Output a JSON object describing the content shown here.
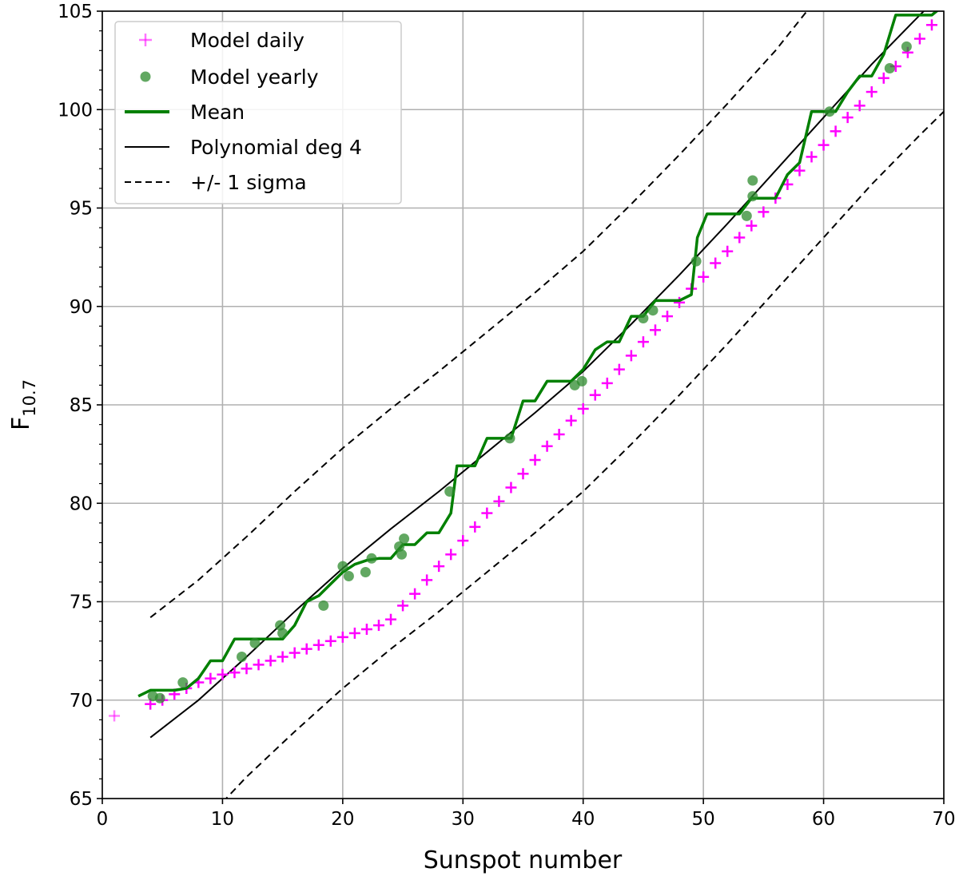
{
  "chart_data": {
    "type": "line",
    "xlabel": "Sunspot number",
    "ylabel": "F",
    "ylabel_sub": "10.7",
    "xlim": [
      0,
      70
    ],
    "ylim": [
      65,
      105
    ],
    "grid": true,
    "x_ticks": [
      "0",
      "10",
      "20",
      "30",
      "40",
      "50",
      "60",
      "70"
    ],
    "y_ticks": [
      "65",
      "70",
      "75",
      "80",
      "85",
      "90",
      "95",
      "100",
      "105"
    ],
    "legend_position": "top-left",
    "series": [
      {
        "name": "Model daily",
        "kind": "scatter-plus",
        "color": "#ff00ff",
        "points": [
          [
            1,
            69.2
          ],
          [
            4,
            69.8
          ],
          [
            5,
            70.0
          ],
          [
            6,
            70.3
          ],
          [
            7,
            70.6
          ],
          [
            8,
            70.9
          ],
          [
            9,
            71.1
          ],
          [
            10,
            71.3
          ],
          [
            11,
            71.4
          ],
          [
            12,
            71.6
          ],
          [
            13,
            71.8
          ],
          [
            14,
            72.0
          ],
          [
            15,
            72.2
          ],
          [
            16,
            72.4
          ],
          [
            17,
            72.6
          ],
          [
            18,
            72.8
          ],
          [
            19,
            73.0
          ],
          [
            20,
            73.2
          ],
          [
            21,
            73.4
          ],
          [
            22,
            73.6
          ],
          [
            23,
            73.8
          ],
          [
            24,
            74.1
          ],
          [
            25,
            74.8
          ],
          [
            26,
            75.4
          ],
          [
            27,
            76.1
          ],
          [
            28,
            76.8
          ],
          [
            29,
            77.4
          ],
          [
            30,
            78.1
          ],
          [
            31,
            78.8
          ],
          [
            32,
            79.5
          ],
          [
            33,
            80.1
          ],
          [
            34,
            80.8
          ],
          [
            35,
            81.5
          ],
          [
            36,
            82.2
          ],
          [
            37,
            82.9
          ],
          [
            38,
            83.5
          ],
          [
            39,
            84.2
          ],
          [
            40,
            84.8
          ],
          [
            41,
            85.5
          ],
          [
            42,
            86.1
          ],
          [
            43,
            86.8
          ],
          [
            44,
            87.5
          ],
          [
            45,
            88.2
          ],
          [
            46,
            88.8
          ],
          [
            47,
            89.5
          ],
          [
            48,
            90.2
          ],
          [
            49,
            90.9
          ],
          [
            50,
            91.5
          ],
          [
            51,
            92.2
          ],
          [
            52,
            92.8
          ],
          [
            53,
            93.5
          ],
          [
            54,
            94.1
          ],
          [
            55,
            94.8
          ],
          [
            56,
            95.5
          ],
          [
            57,
            96.2
          ],
          [
            58,
            96.9
          ],
          [
            59,
            97.6
          ],
          [
            60,
            98.2
          ],
          [
            61,
            98.9
          ],
          [
            62,
            99.6
          ],
          [
            63,
            100.2
          ],
          [
            64,
            100.9
          ],
          [
            65,
            101.6
          ],
          [
            66,
            102.2
          ],
          [
            67,
            102.9
          ],
          [
            68,
            103.6
          ],
          [
            69,
            104.3
          ]
        ]
      },
      {
        "name": "Model yearly",
        "kind": "scatter-dot",
        "color": "#2e8b2e",
        "points": [
          [
            4.2,
            70.2
          ],
          [
            4.8,
            70.1
          ],
          [
            6.7,
            70.9
          ],
          [
            11.6,
            72.2
          ],
          [
            12.7,
            72.9
          ],
          [
            14.8,
            73.8
          ],
          [
            15.0,
            73.4
          ],
          [
            18.4,
            74.8
          ],
          [
            20.0,
            76.8
          ],
          [
            20.5,
            76.3
          ],
          [
            21.9,
            76.5
          ],
          [
            22.4,
            77.2
          ],
          [
            24.7,
            77.8
          ],
          [
            24.9,
            77.4
          ],
          [
            25.1,
            78.2
          ],
          [
            28.9,
            80.6
          ],
          [
            33.9,
            83.3
          ],
          [
            39.3,
            86.0
          ],
          [
            39.9,
            86.2
          ],
          [
            45.0,
            89.4
          ],
          [
            45.8,
            89.8
          ],
          [
            49.4,
            92.3
          ],
          [
            53.6,
            94.6
          ],
          [
            54.1,
            95.6
          ],
          [
            54.1,
            96.4
          ],
          [
            60.5,
            99.9
          ],
          [
            65.5,
            102.1
          ],
          [
            66.9,
            103.2
          ]
        ]
      },
      {
        "name": "Mean",
        "kind": "line",
        "color": "#008000",
        "points": [
          [
            3,
            70.2
          ],
          [
            4,
            70.5
          ],
          [
            5,
            70.5
          ],
          [
            6,
            70.5
          ],
          [
            7,
            70.6
          ],
          [
            8,
            71.1
          ],
          [
            9,
            72.0
          ],
          [
            10,
            72.0
          ],
          [
            11,
            73.1
          ],
          [
            12,
            73.1
          ],
          [
            13,
            73.1
          ],
          [
            14,
            73.1
          ],
          [
            15,
            73.1
          ],
          [
            16,
            73.8
          ],
          [
            17,
            75.0
          ],
          [
            18,
            75.3
          ],
          [
            19,
            75.9
          ],
          [
            20,
            76.5
          ],
          [
            21,
            76.9
          ],
          [
            22,
            77.1
          ],
          [
            23,
            77.2
          ],
          [
            24,
            77.2
          ],
          [
            25,
            77.9
          ],
          [
            26,
            77.9
          ],
          [
            27,
            78.5
          ],
          [
            28,
            78.5
          ],
          [
            29,
            79.5
          ],
          [
            29.5,
            81.9
          ],
          [
            30,
            81.9
          ],
          [
            31,
            81.9
          ],
          [
            32,
            83.3
          ],
          [
            33,
            83.3
          ],
          [
            34,
            83.3
          ],
          [
            35,
            85.2
          ],
          [
            36,
            85.2
          ],
          [
            37,
            86.2
          ],
          [
            38,
            86.2
          ],
          [
            39,
            86.2
          ],
          [
            40,
            86.8
          ],
          [
            41,
            87.8
          ],
          [
            42,
            88.2
          ],
          [
            43,
            88.2
          ],
          [
            44,
            89.5
          ],
          [
            45,
            89.5
          ],
          [
            46,
            90.3
          ],
          [
            47,
            90.3
          ],
          [
            48,
            90.3
          ],
          [
            49,
            90.6
          ],
          [
            49.5,
            93.5
          ],
          [
            50.3,
            94.7
          ],
          [
            52,
            94.7
          ],
          [
            53,
            94.7
          ],
          [
            54,
            95.5
          ],
          [
            55,
            95.5
          ],
          [
            56,
            95.5
          ],
          [
            57,
            96.7
          ],
          [
            58,
            97.3
          ],
          [
            59,
            99.9
          ],
          [
            60,
            99.9
          ],
          [
            61,
            99.9
          ],
          [
            62,
            100.9
          ],
          [
            63,
            101.7
          ],
          [
            64,
            101.7
          ],
          [
            65,
            102.8
          ],
          [
            66,
            104.8
          ],
          [
            67,
            104.8
          ],
          [
            68,
            104.8
          ],
          [
            69,
            104.8
          ],
          [
            70,
            105.3
          ]
        ]
      },
      {
        "name": "Polynomial deg 4",
        "kind": "line",
        "color": "#000000",
        "points": [
          [
            4,
            68.1
          ],
          [
            8,
            70.0
          ],
          [
            12,
            72.2
          ],
          [
            16,
            74.5
          ],
          [
            20,
            76.7
          ],
          [
            24,
            78.7
          ],
          [
            28,
            80.6
          ],
          [
            32,
            82.6
          ],
          [
            36,
            84.6
          ],
          [
            40,
            86.7
          ],
          [
            44,
            89.1
          ],
          [
            48,
            91.6
          ],
          [
            52,
            94.2
          ],
          [
            56,
            96.9
          ],
          [
            60,
            99.6
          ],
          [
            64,
            102.3
          ],
          [
            68,
            104.8
          ],
          [
            70,
            106.0
          ]
        ]
      },
      {
        "name": "+/- 1 sigma",
        "kind": "dashed",
        "color": "#000000",
        "upper": [
          [
            4,
            74.2
          ],
          [
            8,
            76.1
          ],
          [
            12,
            78.3
          ],
          [
            16,
            80.6
          ],
          [
            20,
            82.8
          ],
          [
            24,
            84.8
          ],
          [
            28,
            86.7
          ],
          [
            32,
            88.7
          ],
          [
            36,
            90.7
          ],
          [
            40,
            92.8
          ],
          [
            44,
            95.2
          ],
          [
            48,
            97.7
          ],
          [
            52,
            100.3
          ],
          [
            56,
            103.0
          ],
          [
            59,
            105.3
          ]
        ],
        "lower": [
          [
            10,
            64.8
          ],
          [
            12,
            66.1
          ],
          [
            16,
            68.4
          ],
          [
            20,
            70.6
          ],
          [
            24,
            72.6
          ],
          [
            28,
            74.5
          ],
          [
            32,
            76.5
          ],
          [
            36,
            78.5
          ],
          [
            40,
            80.6
          ],
          [
            44,
            83.0
          ],
          [
            48,
            85.5
          ],
          [
            52,
            88.1
          ],
          [
            56,
            90.8
          ],
          [
            60,
            93.5
          ],
          [
            64,
            96.2
          ],
          [
            68,
            98.7
          ],
          [
            70,
            99.9
          ]
        ]
      }
    ]
  }
}
